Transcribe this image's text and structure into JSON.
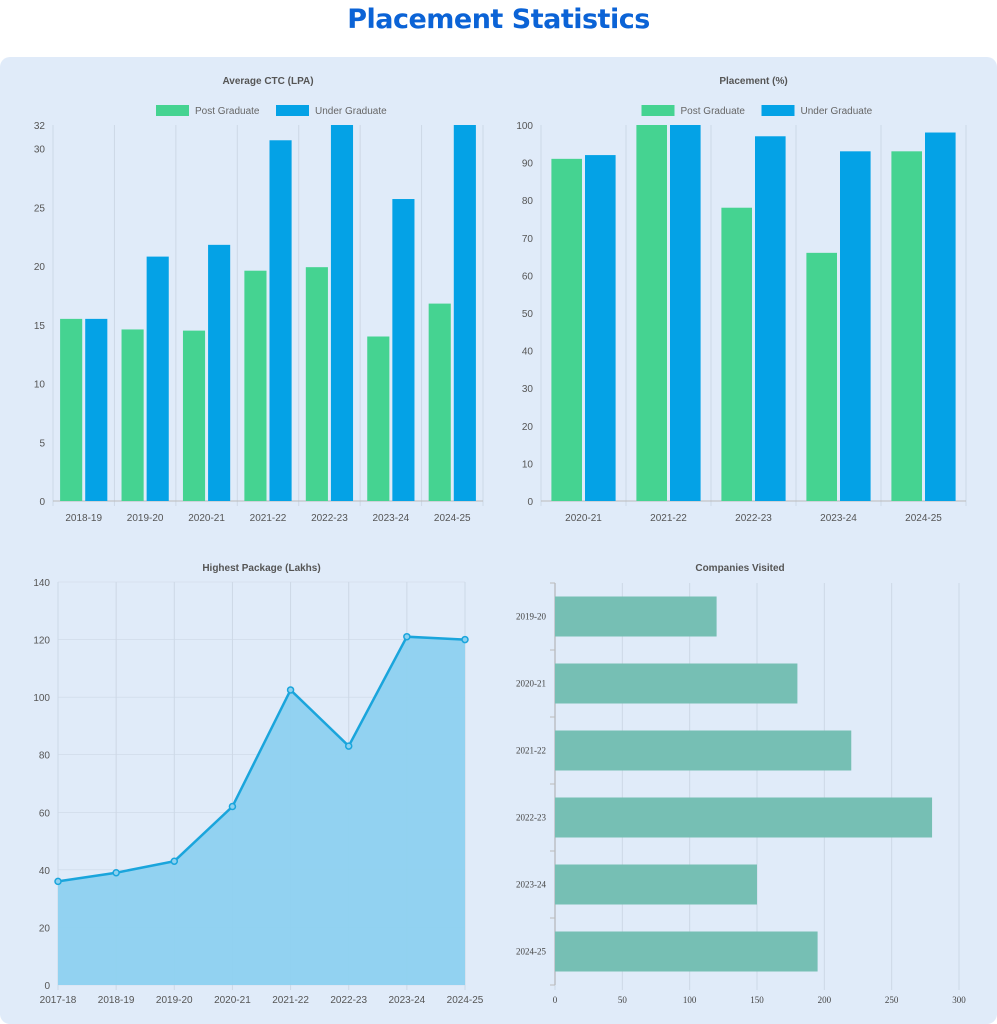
{
  "page": {
    "title": "Placement Statistics"
  },
  "colors": {
    "post_graduate": "#45d391",
    "under_graduate": "#04a2e6",
    "line": "#1aa5dc",
    "area": "#8dd1f0",
    "companies": "#76bfb4",
    "title": "#0b63d6"
  },
  "chart_data": [
    {
      "type": "bar",
      "title": "Average CTC (LPA)",
      "categories": [
        "2018-19",
        "2019-20",
        "2020-21",
        "2021-22",
        "2022-23",
        "2023-24",
        "2024-25"
      ],
      "series": [
        {
          "name": "Post Graduate",
          "values": [
            15.5,
            14.6,
            14.5,
            19.6,
            19.9,
            14.0,
            16.8
          ]
        },
        {
          "name": "Under Graduate",
          "values": [
            15.5,
            20.8,
            21.8,
            30.7,
            32,
            25.7,
            32
          ]
        }
      ],
      "ylim": [
        0,
        32
      ],
      "yticks": [
        0,
        5,
        10,
        15,
        20,
        25,
        30,
        32
      ],
      "legend": "top",
      "grid": true
    },
    {
      "type": "bar",
      "title": "Placement (%)",
      "categories": [
        "2020-21",
        "2021-22",
        "2022-23",
        "2023-24",
        "2024-25"
      ],
      "series": [
        {
          "name": "Post Graduate",
          "values": [
            91,
            100,
            78,
            66,
            93
          ]
        },
        {
          "name": "Under Graduate",
          "values": [
            92,
            100,
            97,
            93,
            98
          ]
        }
      ],
      "ylim": [
        0,
        100
      ],
      "yticks": [
        0,
        10,
        20,
        30,
        40,
        50,
        60,
        70,
        80,
        90,
        100
      ],
      "legend": "top",
      "grid": true
    },
    {
      "type": "area",
      "title": "Highest Package (Lakhs)",
      "categories": [
        "2017-18",
        "2018-19",
        "2019-20",
        "2020-21",
        "2021-22",
        "2022-23",
        "2023-24",
        "2024-25"
      ],
      "values": [
        36,
        39,
        43,
        62,
        102.5,
        83,
        121,
        120
      ],
      "ylim": [
        0,
        140
      ],
      "yticks": [
        0,
        20,
        40,
        60,
        80,
        100,
        120,
        140
      ],
      "grid": true
    },
    {
      "type": "bar",
      "orientation": "horizontal",
      "title": "Companies Visited",
      "categories": [
        "2019-20",
        "2020-21",
        "2021-22",
        "2022-23",
        "2023-24",
        "2024-25"
      ],
      "values": [
        120,
        180,
        220,
        280,
        150,
        195
      ],
      "xlim": [
        0,
        300
      ],
      "xticks": [
        0,
        50,
        100,
        150,
        200,
        250,
        300
      ],
      "grid": true
    }
  ]
}
